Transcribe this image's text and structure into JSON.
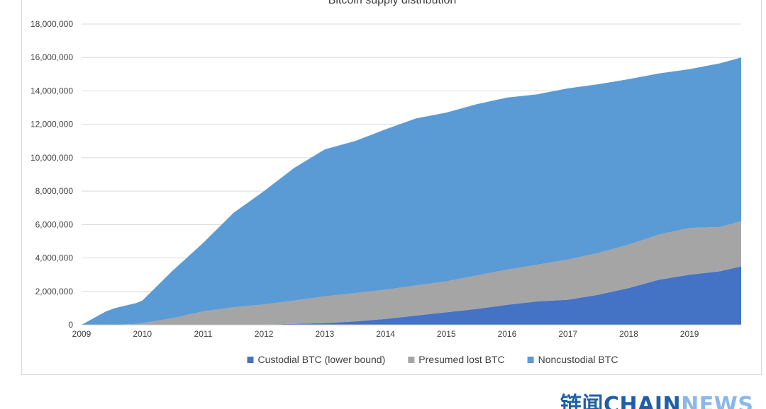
{
  "chart_data": {
    "type": "area",
    "stacked": true,
    "title": "Bitcoin supply distribution",
    "xlabel": "",
    "ylabel": "",
    "x_ticks": [
      "2009",
      "2010",
      "2011",
      "2012",
      "2013",
      "2014",
      "2015",
      "2016",
      "2017",
      "2018",
      "2019"
    ],
    "xlim": [
      2009,
      2019.85
    ],
    "ylim": [
      0,
      18000000
    ],
    "y_ticks": [
      0,
      2000000,
      4000000,
      6000000,
      8000000,
      10000000,
      12000000,
      14000000,
      16000000,
      18000000
    ],
    "y_tick_labels": [
      "0",
      "2,000,000",
      "4,000,000",
      "6,000,000",
      "8,000,000",
      "10,000,000",
      "12,000,000",
      "14,000,000",
      "16,000,000",
      "18,000,000"
    ],
    "grid": "horizontal",
    "legend_position": "bottom",
    "x": [
      2009.0,
      2009.4,
      2009.55,
      2009.9,
      2010.0,
      2010.5,
      2011.0,
      2011.5,
      2012.0,
      2012.5,
      2013.0,
      2013.5,
      2014.0,
      2014.5,
      2015.0,
      2015.5,
      2016.0,
      2016.5,
      2017.0,
      2017.5,
      2018.0,
      2018.5,
      2019.0,
      2019.5,
      2019.85
    ],
    "series": [
      {
        "name": "Custodial BTC (lower bound)",
        "color": "#4472C4",
        "values": [
          0,
          0,
          0,
          0,
          0,
          0,
          0,
          0,
          20000,
          50000,
          100000,
          200000,
          350000,
          550000,
          750000,
          950000,
          1200000,
          1400000,
          1500000,
          1800000,
          2200000,
          2700000,
          3000000,
          3200000,
          3500000
        ]
      },
      {
        "name": "Presumed lost BTC",
        "color": "#A5A5A5",
        "values": [
          0,
          0,
          0,
          50000,
          100000,
          400000,
          800000,
          1050000,
          1200000,
          1400000,
          1600000,
          1700000,
          1750000,
          1800000,
          1850000,
          2000000,
          2100000,
          2200000,
          2400000,
          2500000,
          2600000,
          2700000,
          2800000,
          2650000,
          2700000
        ]
      },
      {
        "name": "Noncustodial BTC",
        "color": "#5B9BD5",
        "values": [
          0,
          800000,
          1000000,
          1250000,
          1350000,
          2850000,
          4100000,
          5650000,
          6780000,
          7950000,
          8800000,
          9100000,
          9600000,
          10000000,
          10100000,
          10250000,
          10300000,
          10200000,
          10250000,
          10100000,
          9900000,
          9650000,
          9500000,
          9800000,
          9800000
        ]
      }
    ]
  },
  "watermark": {
    "cn": "链闻",
    "chain": "CHAIN",
    "news": "NEWS"
  }
}
